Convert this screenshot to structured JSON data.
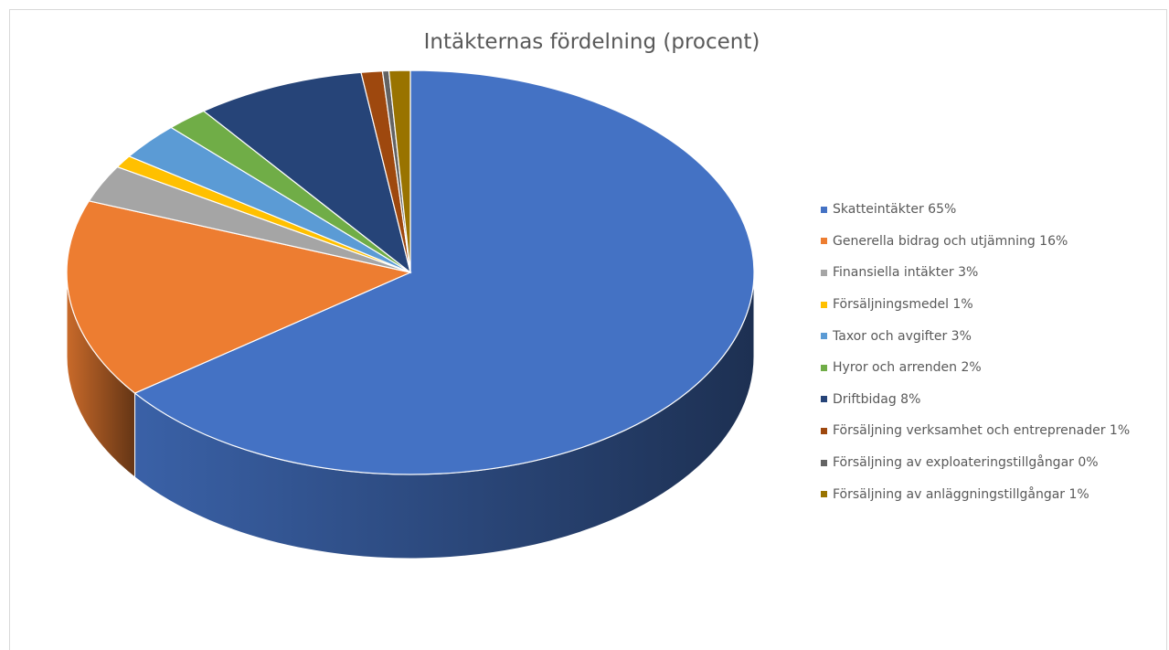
{
  "chart_data": {
    "type": "pie",
    "style": "3d",
    "title": "Intäkternas fördelning (procent)",
    "legend_position": "right",
    "slices": [
      {
        "label": "Skatteintäkter  65%",
        "value": 65,
        "color": "#4472C4"
      },
      {
        "label": "Generella bidrag och utjämning  16%",
        "value": 16,
        "color": "#ED7D31"
      },
      {
        "label": "Finansiella intäkter  3%",
        "value": 3,
        "color": "#A5A5A5"
      },
      {
        "label": "Försäljningsmedel 1%",
        "value": 1,
        "color": "#FFC000"
      },
      {
        "label": "Taxor och avgifter  3%",
        "value": 3,
        "color": "#5B9BD5"
      },
      {
        "label": "Hyror och arrenden  2%",
        "value": 2,
        "color": "#70AD47"
      },
      {
        "label": "Driftbidag 8%",
        "value": 8,
        "color": "#264478"
      },
      {
        "label": "Försäljning verksamhet och entreprenader  1%",
        "value": 1,
        "color": "#9E480E"
      },
      {
        "label": "Försäljning av exploateringstillgångar 0%",
        "value": 0.3,
        "color": "#636363"
      },
      {
        "label": "Försäljning av anläggningstillgångar  1%",
        "value": 1,
        "color": "#997300"
      }
    ]
  }
}
